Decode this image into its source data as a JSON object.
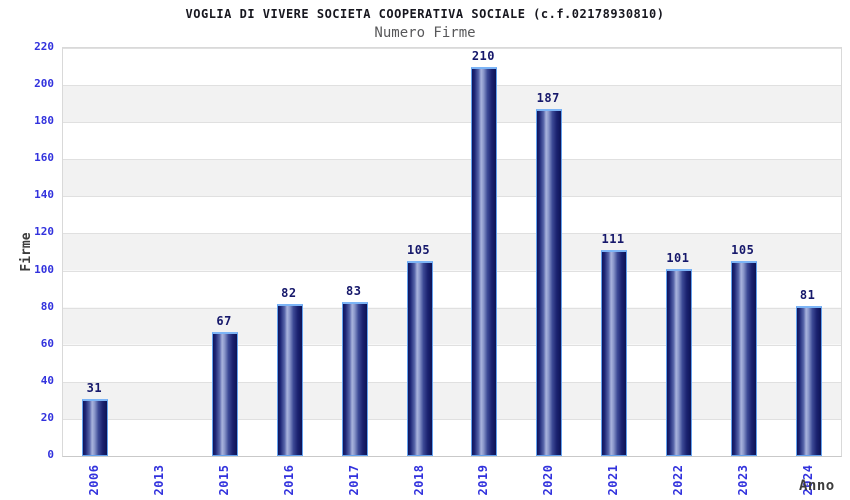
{
  "colors": {
    "background": "#ffffff",
    "title_text": "#17171f",
    "subtitle_text": "#58585a",
    "axis_title_text": "#3c3c3c",
    "tick_label_blue": "#3232dd",
    "value_label_navy": "#16186b",
    "bar_dark": "#10155c",
    "bar_light": "#a9b3dd",
    "bar_border": "#64a2ee",
    "band_gray": "#f2f2f2",
    "gridline": "#e0e0e0"
  },
  "chart_data": {
    "type": "bar",
    "title": "VOGLIA DI VIVERE SOCIETA COOPERATIVA SOCIALE (c.f.02178930810)",
    "subtitle": "Numero Firme",
    "xlabel": "Anno",
    "ylabel": "Firme",
    "categories": [
      "2006",
      "2013",
      "2015",
      "2016",
      "2017",
      "2018",
      "2019",
      "2020",
      "2021",
      "2022",
      "2023",
      "2024"
    ],
    "values": [
      31,
      0,
      67,
      82,
      83,
      105,
      210,
      187,
      111,
      101,
      105,
      81
    ],
    "bar_value_labels": [
      "31",
      "",
      "67",
      "82",
      "83",
      "105",
      "210",
      "187",
      "111",
      "101",
      "105",
      "81"
    ],
    "ylim": [
      0,
      220
    ],
    "ytick_step": 20,
    "ytick_labels": [
      "0",
      "20",
      "40",
      "60",
      "80",
      "100",
      "120",
      "140",
      "160",
      "180",
      "200",
      "220"
    ],
    "grid": true,
    "alternating_bands": true,
    "legend": "none"
  }
}
